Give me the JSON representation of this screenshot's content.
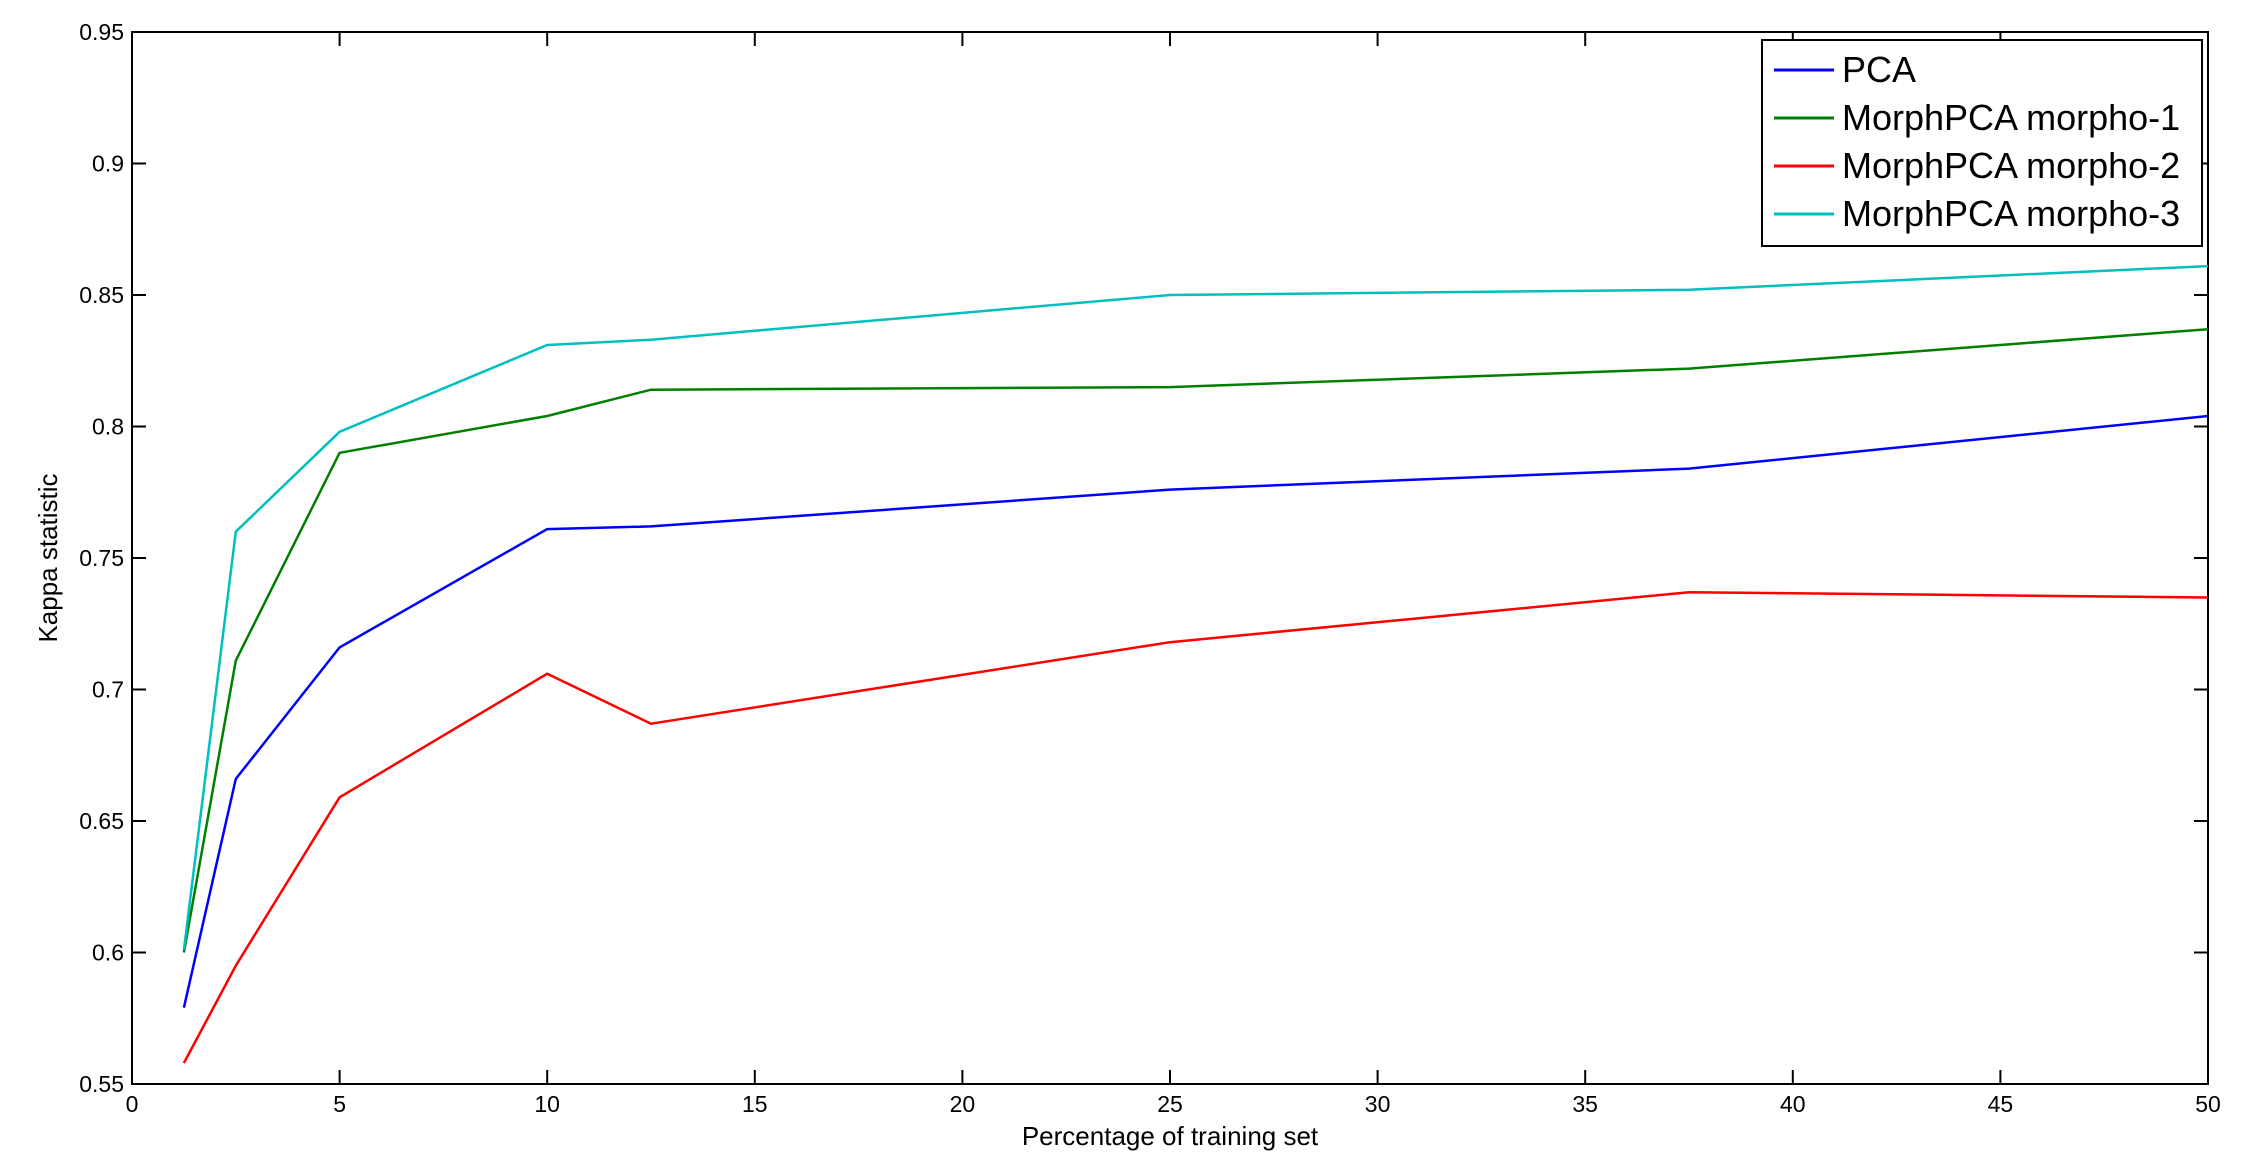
{
  "chart_data": {
    "type": "line",
    "xlabel": "Percentage of training set",
    "ylabel": "Kappa statistic",
    "xlim": [
      0,
      50
    ],
    "ylim": [
      0.55,
      0.95
    ],
    "xticks": [
      0,
      5,
      10,
      15,
      20,
      25,
      30,
      35,
      40,
      45,
      50
    ],
    "yticks": [
      0.55,
      0.6,
      0.65,
      0.7,
      0.75,
      0.8,
      0.85,
      0.9,
      0.95
    ],
    "xtick_labels": [
      "0",
      "5",
      "10",
      "15",
      "20",
      "25",
      "30",
      "35",
      "40",
      "45",
      "50"
    ],
    "ytick_labels": [
      "0.55",
      "0.6",
      "0.65",
      "0.7",
      "0.75",
      "0.8",
      "0.85",
      "0.9",
      "0.95"
    ],
    "grid": false,
    "legend_position": "top-right",
    "x": [
      1.25,
      2.5,
      5,
      10,
      12.5,
      25,
      37.5,
      50
    ],
    "series": [
      {
        "name": "PCA",
        "color": "#0000ff",
        "values": [
          0.579,
          0.666,
          0.716,
          0.761,
          0.762,
          0.776,
          0.784,
          0.804
        ]
      },
      {
        "name": "MorphPCA morpho-1",
        "color": "#008000",
        "values": [
          0.6,
          0.711,
          0.79,
          0.804,
          0.814,
          0.815,
          0.822,
          0.837
        ]
      },
      {
        "name": "MorphPCA morpho-2",
        "color": "#ff0000",
        "values": [
          0.558,
          0.595,
          0.659,
          0.706,
          0.687,
          0.718,
          0.737,
          0.735
        ]
      },
      {
        "name": "MorphPCA morpho-3",
        "color": "#00bfbf",
        "values": [
          0.601,
          0.76,
          0.798,
          0.831,
          0.833,
          0.85,
          0.852,
          0.861
        ]
      }
    ]
  }
}
